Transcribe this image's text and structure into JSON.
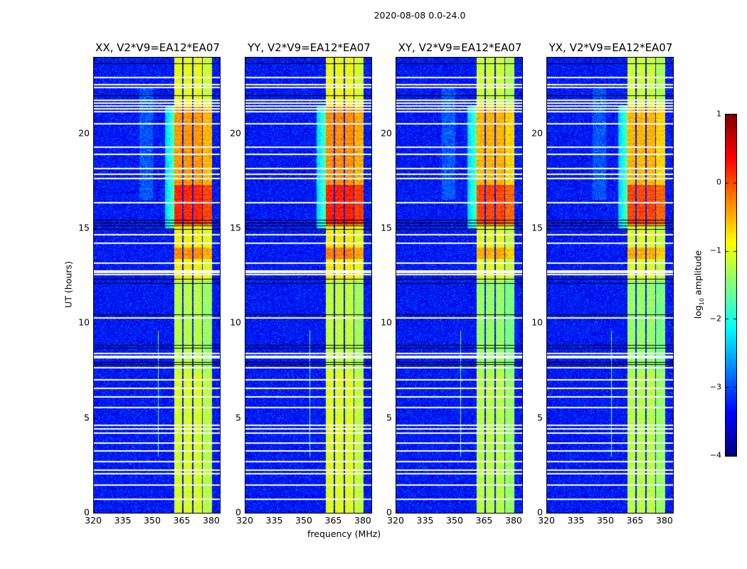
{
  "chart_data": {
    "type": "heatmap",
    "title": "2020-08-08 0.0-24.0",
    "xlabel": "frequency (MHz)",
    "ylabel": "UT (hours)",
    "xlim": [
      320,
      384
    ],
    "ylim": [
      0,
      24
    ],
    "xticks": [
      320,
      335,
      350,
      365,
      380
    ],
    "yticks": [
      0,
      5,
      10,
      15,
      20
    ],
    "colormap": "jet",
    "colorbar": {
      "label_pre": "log",
      "label_sub": "10",
      "label_post": " amplitude",
      "range": [
        -4,
        1
      ],
      "ticks": [
        1,
        0,
        -1,
        -2,
        -3,
        -4
      ]
    },
    "panels": [
      {
        "title": "XX, V2*V9=EA12*EA07",
        "level_offset": 0.0
      },
      {
        "title": "YY, V2*V9=EA12*EA07",
        "level_offset": 0.05
      },
      {
        "title": "XY, V2*V9=EA12*EA07",
        "level_offset": -0.15
      },
      {
        "title": "YX, V2*V9=EA12*EA07",
        "level_offset": -0.15
      }
    ],
    "background_level": -3.3,
    "subbands_mhz": [
      [
        360.5,
        364.8
      ],
      [
        365.3,
        369.8
      ],
      [
        370.3,
        374.8
      ],
      [
        375.3,
        379.7
      ]
    ],
    "band_levels_by_time": [
      {
        "t": [
          0,
          7.5
        ],
        "level": -1.1
      },
      {
        "t": [
          7.5,
          12.3
        ],
        "level": -1.25
      },
      {
        "t": [
          12.3,
          13.4
        ],
        "level": -0.9
      },
      {
        "t": [
          13.4,
          14.0
        ],
        "level": -0.35
      },
      {
        "t": [
          14.0,
          15.2
        ],
        "level": -0.9
      },
      {
        "t": [
          15.2,
          17.3
        ],
        "level": 0.15
      },
      {
        "t": [
          17.3,
          21.5
        ],
        "level": -0.4
      },
      {
        "t": [
          21.5,
          24
        ],
        "level": -1.0
      }
    ],
    "rfi": {
      "f": [
        350,
        353
      ],
      "t": [
        3,
        9.6
      ],
      "level": -1.6
    },
    "flagged_times_white": [
      23.0,
      22.6,
      22.45,
      21.8,
      21.65,
      21.5,
      21.35,
      21.2,
      20.55,
      19.3,
      18.95,
      18.2,
      17.9,
      17.65,
      16.4,
      14.7,
      14.25,
      13.2,
      12.8,
      12.7,
      12.6,
      10.3,
      8.45,
      8.3,
      8.2,
      7.7,
      7.05,
      6.6,
      6.15,
      5.6,
      4.65,
      4.45,
      4.25,
      3.7,
      3.3,
      2.75,
      2.3,
      2.1,
      1.5,
      0.75
    ],
    "flagged_times_black": [
      23.7,
      22.0,
      15.45,
      15.3,
      15.15,
      14.95,
      12.35,
      12.1,
      10.45,
      8.85,
      8.7,
      7.95,
      7.85
    ]
  }
}
